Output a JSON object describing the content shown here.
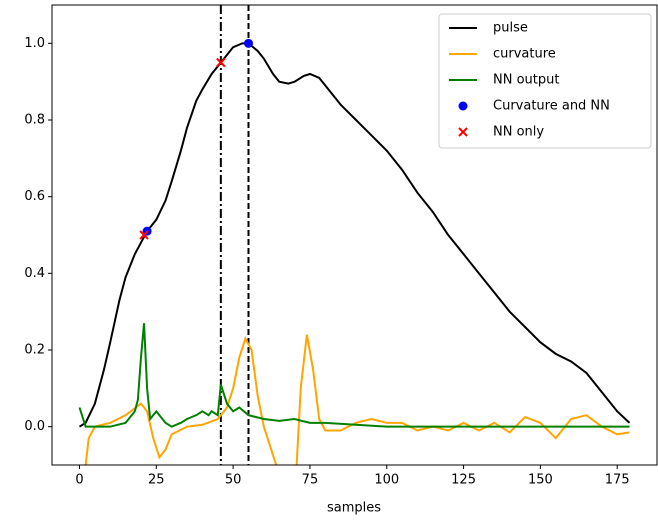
{
  "chart_data": {
    "type": "line",
    "xlabel": "samples",
    "xlim": [
      -8.95,
      187.95
    ],
    "ylim": [
      -0.1,
      1.1
    ],
    "xticks": [
      0,
      25,
      50,
      75,
      100,
      125,
      150,
      175
    ],
    "yticks": [
      {
        "value": 0,
        "label": "0.0"
      },
      {
        "value": 0.2,
        "label": "0.2"
      },
      {
        "value": 0.4,
        "label": "0.4"
      },
      {
        "value": 0.6,
        "label": "0.6"
      },
      {
        "value": 0.8,
        "label": "0.8"
      },
      {
        "value": 1,
        "label": "1.0"
      }
    ],
    "legend": "upper right",
    "vlines": [
      {
        "x": 46,
        "style": "dashdot",
        "color": "#000000"
      },
      {
        "x": 55,
        "style": "dashed",
        "color": "#000000"
      }
    ],
    "series": [
      {
        "name": "pulse",
        "kind": "line",
        "color": "#000000",
        "x": [
          0,
          2,
          5,
          8,
          10,
          13,
          15,
          18,
          20,
          22,
          25,
          28,
          30,
          33,
          35,
          38,
          40,
          43,
          45,
          48,
          50,
          53,
          55,
          58,
          60,
          63,
          65,
          68,
          70,
          73,
          75,
          78,
          80,
          85,
          90,
          95,
          100,
          105,
          110,
          115,
          120,
          125,
          130,
          135,
          140,
          145,
          150,
          155,
          160,
          165,
          170,
          175,
          179
        ],
        "values": [
          0,
          0.01,
          0.06,
          0.15,
          0.22,
          0.33,
          0.39,
          0.45,
          0.48,
          0.51,
          0.54,
          0.59,
          0.64,
          0.72,
          0.78,
          0.85,
          0.88,
          0.92,
          0.94,
          0.97,
          0.99,
          1.0,
          1.0,
          0.98,
          0.96,
          0.92,
          0.9,
          0.895,
          0.9,
          0.915,
          0.92,
          0.91,
          0.89,
          0.84,
          0.8,
          0.76,
          0.72,
          0.67,
          0.61,
          0.56,
          0.5,
          0.45,
          0.4,
          0.35,
          0.3,
          0.26,
          0.22,
          0.19,
          0.17,
          0.14,
          0.09,
          0.04,
          0.01
        ]
      },
      {
        "name": "curvature",
        "kind": "line",
        "color": "#ffa500",
        "x": [
          0,
          2,
          3,
          5,
          10,
          15,
          20,
          22,
          24,
          26,
          28,
          30,
          35,
          40,
          45,
          48,
          50,
          52,
          54,
          56,
          58,
          60,
          62,
          64,
          66,
          68,
          70,
          72,
          74,
          76,
          78,
          80,
          85,
          90,
          95,
          100,
          105,
          110,
          115,
          120,
          125,
          130,
          135,
          140,
          145,
          150,
          155,
          160,
          165,
          170,
          175,
          179
        ],
        "values": [
          -0.2,
          -0.1,
          -0.03,
          0.0,
          0.01,
          0.03,
          0.06,
          0.04,
          -0.03,
          -0.08,
          -0.06,
          -0.02,
          0.0,
          0.005,
          0.02,
          0.05,
          0.1,
          0.18,
          0.23,
          0.2,
          0.08,
          0.0,
          -0.05,
          -0.1,
          -0.2,
          -0.3,
          -0.2,
          0.1,
          0.24,
          0.15,
          0.02,
          -0.01,
          -0.01,
          0.01,
          0.02,
          0.01,
          0.01,
          -0.01,
          0.0,
          -0.01,
          0.01,
          -0.01,
          0.01,
          -0.015,
          0.025,
          0.01,
          -0.03,
          0.02,
          0.03,
          0.0,
          -0.02,
          -0.015
        ]
      },
      {
        "name": "NN output",
        "kind": "line",
        "color": "#008000",
        "x": [
          0,
          2,
          5,
          10,
          15,
          18,
          19,
          20,
          21,
          22,
          23,
          25,
          28,
          30,
          33,
          35,
          38,
          40,
          42,
          43,
          45,
          46,
          48,
          50,
          52,
          55,
          60,
          65,
          70,
          75,
          80,
          90,
          100,
          120,
          150,
          179
        ],
        "values": [
          0.05,
          0.0,
          0.0,
          0.0,
          0.01,
          0.04,
          0.07,
          0.18,
          0.27,
          0.1,
          0.02,
          0.04,
          0.01,
          0.0,
          0.01,
          0.02,
          0.03,
          0.04,
          0.03,
          0.04,
          0.03,
          0.11,
          0.06,
          0.04,
          0.05,
          0.03,
          0.02,
          0.015,
          0.02,
          0.01,
          0.01,
          0.005,
          0.0,
          0.0,
          0.0,
          0.0
        ]
      },
      {
        "name": "Curvature and NN",
        "kind": "scatter",
        "marker": "o",
        "color": "#0000ff",
        "x": [
          22,
          55
        ],
        "values": [
          0.51,
          1.0
        ]
      },
      {
        "name": "NN only",
        "kind": "scatter",
        "marker": "x",
        "color": "#ff0000",
        "x": [
          21,
          46
        ],
        "values": [
          0.5,
          0.95
        ]
      }
    ]
  }
}
